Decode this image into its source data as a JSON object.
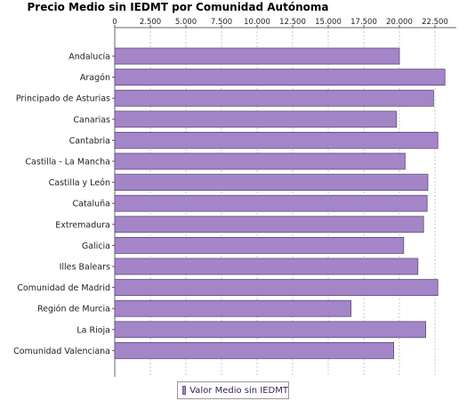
{
  "chart_data": {
    "type": "bar",
    "orientation": "horizontal",
    "title": "Precio Medio sin IEDMT por Comunidad Autónoma",
    "xlabel": "",
    "ylabel": "",
    "xlim": [
      0,
      24000
    ],
    "x_ticks": [
      "0",
      "2.500",
      "5.000",
      "7.500",
      "10.000",
      "12.500",
      "15.000",
      "17.500",
      "20.000",
      "22.500"
    ],
    "x_tick_values": [
      0,
      2500,
      5000,
      7500,
      10000,
      12500,
      15000,
      17500,
      20000,
      22500
    ],
    "axis_position": "top",
    "grid": true,
    "legend_position": "bottom",
    "categories": [
      "Andalucía",
      "Aragón",
      "Principado de Asturias",
      "Canarias",
      "Cantabria",
      "Castilla - La Mancha",
      "Castilla y León",
      "Cataluña",
      "Extremadura",
      "Galicia",
      "Illes Balears",
      "Comunidad de Madrid",
      "Región de Murcia",
      "La Rioja",
      "Comunidad Valenciana"
    ],
    "series": [
      {
        "name": "Valor Medio sin IEDMT",
        "color": "#a385c8",
        "values": [
          20000,
          23200,
          22400,
          19800,
          22700,
          20400,
          22000,
          21950,
          21700,
          20300,
          21300,
          22700,
          16600,
          21850,
          19600
        ]
      }
    ]
  }
}
